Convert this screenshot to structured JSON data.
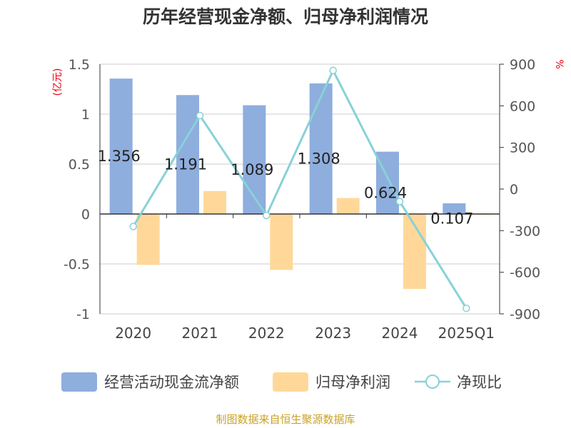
{
  "title": "历年经营现金净额、归母净利润情况",
  "source": "制图数据来自恒生聚源数据库",
  "colors": {
    "cash_flow": "#8eaedd",
    "net_profit": "#ffd899",
    "ratio": "#88d1d8",
    "grid": "#cccccc",
    "axis": "#333333",
    "unit": "#e60012"
  },
  "chart_data": {
    "type": "bar",
    "categories": [
      "2020",
      "2021",
      "2022",
      "2023",
      "2024",
      "2025Q1"
    ],
    "series": [
      {
        "name": "经营活动现金流净额",
        "type": "bar",
        "axis": "left",
        "values": [
          1.356,
          1.191,
          1.089,
          1.308,
          0.624,
          0.107
        ],
        "data_labels": [
          "1.356",
          "1.191",
          "1.089",
          "1.308",
          "0.624",
          "0.107"
        ]
      },
      {
        "name": "归母净利润",
        "type": "bar",
        "axis": "left",
        "values": [
          -0.51,
          0.23,
          -0.56,
          0.16,
          -0.75,
          0.0
        ]
      },
      {
        "name": "净现比",
        "type": "line",
        "axis": "right",
        "values": [
          -270,
          530,
          -190,
          855,
          -90,
          -860
        ]
      }
    ],
    "y_left": {
      "unit": "(亿元)",
      "min": -1,
      "max": 1.5,
      "ticks": [
        1.5,
        1,
        0.5,
        0,
        -0.5,
        -1
      ],
      "tick_labels": [
        "1.5",
        "1",
        "0.5",
        "0",
        "-0.5",
        "-1"
      ]
    },
    "y_right": {
      "unit": "%",
      "min": -900,
      "max": 900,
      "ticks": [
        900,
        600,
        300,
        0,
        -300,
        -600,
        -900
      ],
      "tick_labels": [
        "900",
        "600",
        "300",
        "0",
        "-300",
        "-600",
        "-900"
      ]
    },
    "grid": true,
    "legend": "bottom"
  }
}
